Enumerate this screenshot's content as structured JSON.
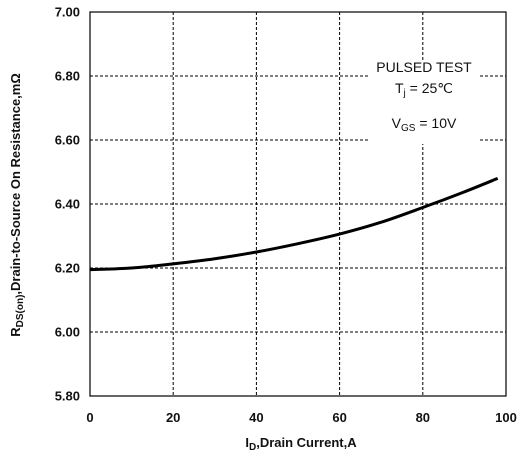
{
  "chart_data": {
    "type": "line",
    "title": "",
    "xlabel": {
      "main": "I",
      "sub": "D",
      "rest": ",Drain Current,A"
    },
    "ylabel": {
      "main": "R",
      "sub": "DS(on)",
      "rest": ",Drain-to-Source On Resistance,mΩ"
    },
    "xlim": [
      0,
      100
    ],
    "ylim": [
      5.8,
      7.0
    ],
    "x_ticks": [
      0,
      20,
      40,
      60,
      80,
      100
    ],
    "x_tick_labels": [
      "0",
      "20",
      "40",
      "60",
      "80",
      "100"
    ],
    "y_ticks": [
      5.8,
      6.0,
      6.2,
      6.4,
      6.6,
      6.8,
      7.0
    ],
    "y_tick_labels": [
      "5.80",
      "6.00",
      "6.20",
      "6.40",
      "6.60",
      "6.80",
      "7.00"
    ],
    "grid": true,
    "series": [
      {
        "x": [
          0,
          10,
          20,
          30,
          40,
          50,
          60,
          70,
          80,
          90,
          98
        ],
        "y": [
          6.195,
          6.2,
          6.213,
          6.229,
          6.25,
          6.276,
          6.306,
          6.343,
          6.389,
          6.438,
          6.48
        ]
      }
    ],
    "annotations": {
      "line1": "PULSED TEST",
      "line2": {
        "main": "T",
        "sub": "j",
        "rest": " = 25℃"
      },
      "line3": {
        "main": "V",
        "sub": "GS",
        "rest": " = 10V"
      }
    }
  },
  "colors": {
    "line": "#000000",
    "grid": "#000000",
    "frame": "#000000"
  }
}
